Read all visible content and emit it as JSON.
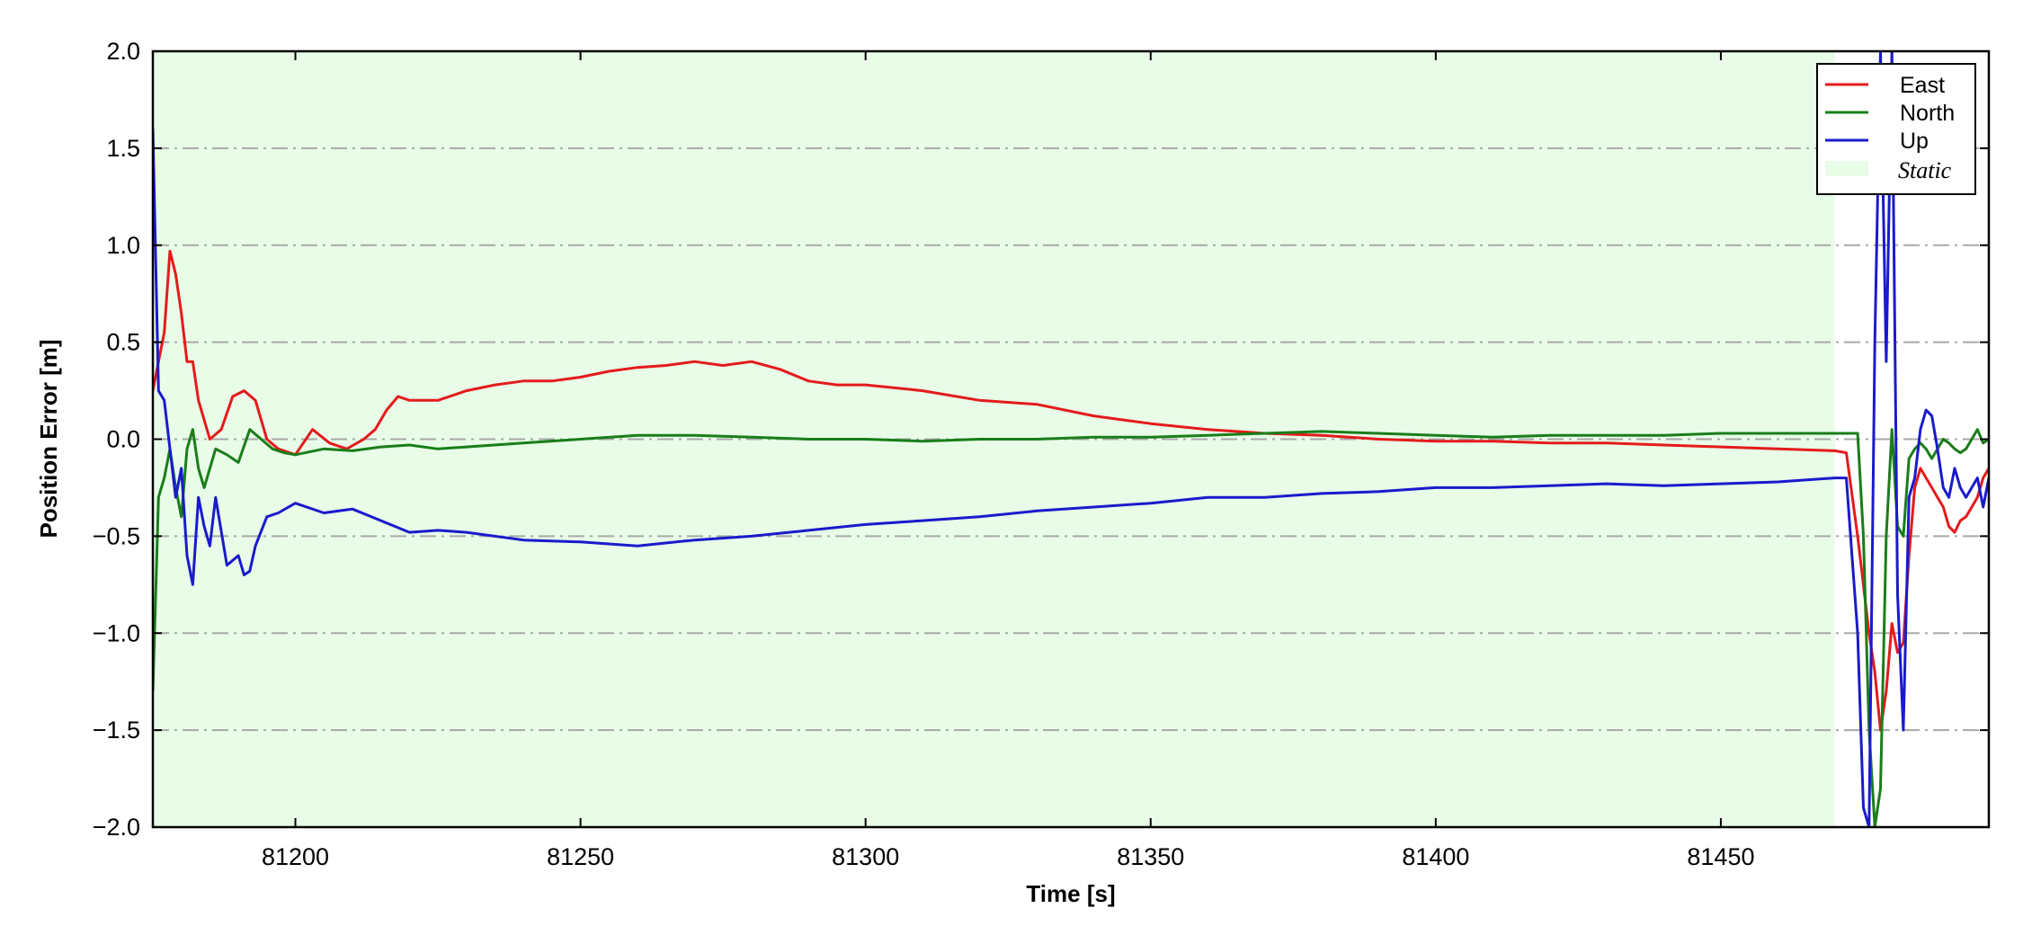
{
  "chart_data": {
    "type": "line",
    "title": "",
    "xlabel": "Time [s]",
    "ylabel": "Position Error [m]",
    "xlim": [
      81175,
      81497
    ],
    "ylim": [
      -2.0,
      2.0
    ],
    "xticks": [
      81200,
      81250,
      81300,
      81350,
      81400,
      81450
    ],
    "xtick_labels": [
      "81200",
      "81250",
      "81300",
      "81350",
      "81400",
      "81450"
    ],
    "yticks": [
      -2.0,
      -1.5,
      -1.0,
      -0.5,
      0.0,
      0.5,
      1.0,
      1.5,
      2.0
    ],
    "ytick_labels": [
      "−2.0",
      "−1.5",
      "−1.0",
      "−0.5",
      "0.0",
      "0.5",
      "1.0",
      "1.5",
      "2.0"
    ],
    "grid": "horizontal dash-dot",
    "legend_position": "top-right",
    "static_region": {
      "label": "Static",
      "x": [
        81175,
        81470
      ],
      "color": "#e8fce8"
    },
    "series": [
      {
        "name": "East",
        "color": "#e41a1c",
        "x": [
          81175,
          81176,
          81177,
          81178,
          81179,
          81180,
          81181,
          81182,
          81183,
          81185,
          81187,
          81189,
          81191,
          81193,
          81195,
          81197,
          81200,
          81203,
          81206,
          81209,
          81212,
          81214,
          81216,
          81218,
          81220,
          81225,
          81230,
          81235,
          81240,
          81245,
          81250,
          81255,
          81260,
          81265,
          81270,
          81275,
          81280,
          81285,
          81290,
          81295,
          81300,
          81310,
          81320,
          81330,
          81340,
          81350,
          81360,
          81370,
          81380,
          81390,
          81400,
          81410,
          81420,
          81430,
          81440,
          81450,
          81460,
          81470,
          81472,
          81474,
          81476,
          81477,
          81478,
          81479,
          81480,
          81481,
          81482,
          81483,
          81484,
          81485,
          81486,
          81487,
          81488,
          81489,
          81490,
          81491,
          81492,
          81493,
          81494,
          81495,
          81496,
          81497
        ],
        "y": [
          0.25,
          0.4,
          0.55,
          0.97,
          0.85,
          0.65,
          0.4,
          0.4,
          0.2,
          0.0,
          0.05,
          0.22,
          0.25,
          0.2,
          0.0,
          -0.05,
          -0.08,
          0.05,
          -0.02,
          -0.05,
          0.0,
          0.05,
          0.15,
          0.22,
          0.2,
          0.2,
          0.25,
          0.28,
          0.3,
          0.3,
          0.32,
          0.35,
          0.37,
          0.38,
          0.4,
          0.38,
          0.4,
          0.36,
          0.3,
          0.28,
          0.28,
          0.25,
          0.2,
          0.18,
          0.12,
          0.08,
          0.05,
          0.03,
          0.02,
          0.0,
          -0.01,
          -0.01,
          -0.02,
          -0.02,
          -0.03,
          -0.04,
          -0.05,
          -0.06,
          -0.07,
          -0.5,
          -1.0,
          -1.2,
          -1.5,
          -1.3,
          -0.95,
          -1.1,
          -1.05,
          -0.6,
          -0.25,
          -0.15,
          -0.2,
          -0.25,
          -0.3,
          -0.35,
          -0.45,
          -0.48,
          -0.42,
          -0.4,
          -0.35,
          -0.3,
          -0.2,
          -0.15
        ]
      },
      {
        "name": "North",
        "color": "#1a7d1a",
        "x": [
          81175,
          81176,
          81177,
          81178,
          81179,
          81180,
          81181,
          81182,
          81183,
          81184,
          81186,
          81188,
          81190,
          81192,
          81194,
          81196,
          81198,
          81200,
          81205,
          81210,
          81215,
          81220,
          81225,
          81230,
          81240,
          81250,
          81260,
          81270,
          81280,
          81290,
          81300,
          81310,
          81320,
          81330,
          81340,
          81350,
          81360,
          81370,
          81380,
          81390,
          81400,
          81410,
          81420,
          81430,
          81440,
          81450,
          81460,
          81470,
          81472,
          81474,
          81475,
          81476,
          81477,
          81478,
          81479,
          81480,
          81481,
          81482,
          81483,
          81484,
          81485,
          81486,
          81487,
          81488,
          81489,
          81490,
          81491,
          81492,
          81493,
          81494,
          81495,
          81496,
          81497
        ],
        "y": [
          -1.3,
          -0.3,
          -0.2,
          -0.05,
          -0.25,
          -0.4,
          -0.05,
          0.05,
          -0.15,
          -0.25,
          -0.05,
          -0.08,
          -0.12,
          0.05,
          0.0,
          -0.05,
          -0.07,
          -0.08,
          -0.05,
          -0.06,
          -0.04,
          -0.03,
          -0.05,
          -0.04,
          -0.02,
          0.0,
          0.02,
          0.02,
          0.01,
          0.0,
          0.0,
          -0.01,
          0.0,
          0.0,
          0.01,
          0.01,
          0.02,
          0.03,
          0.04,
          0.03,
          0.02,
          0.01,
          0.02,
          0.02,
          0.02,
          0.03,
          0.03,
          0.03,
          0.03,
          0.03,
          -0.5,
          -1.5,
          -2.0,
          -1.8,
          -0.5,
          0.05,
          -0.45,
          -0.5,
          -0.1,
          -0.05,
          -0.02,
          -0.05,
          -0.1,
          -0.05,
          0.0,
          -0.02,
          -0.05,
          -0.07,
          -0.05,
          0.0,
          0.05,
          -0.02,
          0.0
        ]
      },
      {
        "name": "Up",
        "color": "#1a1acc",
        "x": [
          81175,
          81176,
          81177,
          81178,
          81179,
          81180,
          81181,
          81182,
          81183,
          81184,
          81185,
          81186,
          81188,
          81190,
          81191,
          81192,
          81193,
          81195,
          81197,
          81200,
          81205,
          81210,
          81215,
          81220,
          81225,
          81230,
          81240,
          81250,
          81260,
          81270,
          81280,
          81290,
          81300,
          81310,
          81320,
          81330,
          81340,
          81350,
          81360,
          81370,
          81380,
          81390,
          81400,
          81410,
          81420,
          81430,
          81440,
          81450,
          81460,
          81470,
          81472,
          81474,
          81475,
          81476,
          81477,
          81478,
          81479,
          81480,
          81481,
          81482,
          81483,
          81484,
          81485,
          81486,
          81487,
          81488,
          81489,
          81490,
          81491,
          81492,
          81493,
          81494,
          81495,
          81496,
          81497
        ],
        "y": [
          1.6,
          0.25,
          0.2,
          -0.05,
          -0.3,
          -0.15,
          -0.6,
          -0.75,
          -0.3,
          -0.45,
          -0.55,
          -0.3,
          -0.65,
          -0.6,
          -0.7,
          -0.68,
          -0.55,
          -0.4,
          -0.38,
          -0.33,
          -0.38,
          -0.36,
          -0.42,
          -0.48,
          -0.47,
          -0.48,
          -0.52,
          -0.53,
          -0.55,
          -0.52,
          -0.5,
          -0.47,
          -0.44,
          -0.42,
          -0.4,
          -0.37,
          -0.35,
          -0.33,
          -0.3,
          -0.3,
          -0.28,
          -0.27,
          -0.25,
          -0.25,
          -0.24,
          -0.23,
          -0.24,
          -0.23,
          -0.22,
          -0.2,
          -0.2,
          -1.0,
          -1.9,
          -2.0,
          0.5,
          2.0,
          0.4,
          2.0,
          -0.8,
          -1.5,
          -0.3,
          -0.2,
          0.05,
          0.15,
          0.12,
          -0.05,
          -0.25,
          -0.3,
          -0.15,
          -0.25,
          -0.3,
          -0.25,
          -0.2,
          -0.35,
          -0.2
        ]
      }
    ]
  }
}
